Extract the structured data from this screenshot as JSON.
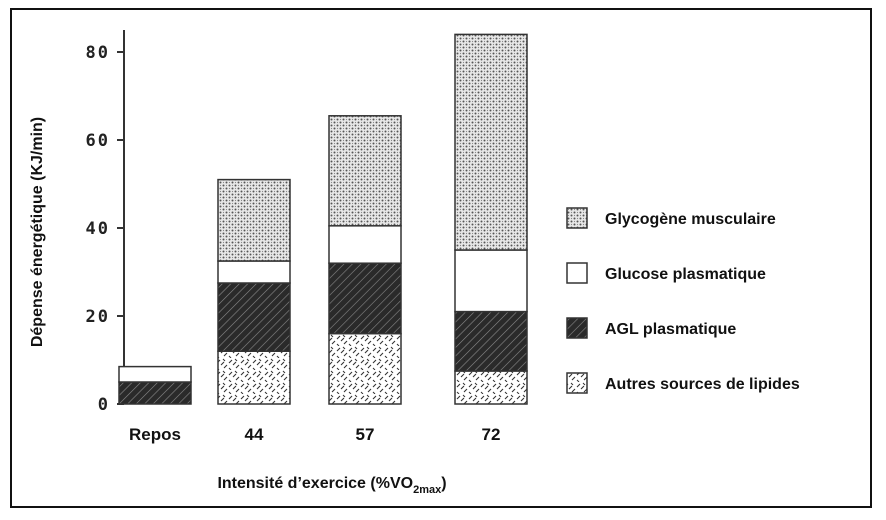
{
  "chart_data": {
    "type": "bar",
    "stacked": true,
    "categories": [
      "Repos",
      "44",
      "57",
      "72"
    ],
    "series": [
      {
        "name": "Autres sources de lipides",
        "pattern": "zigzag",
        "values": [
          0,
          12,
          16,
          7.5
        ]
      },
      {
        "name": "AGL plasmatique",
        "pattern": "hatch",
        "values": [
          5,
          15.5,
          16,
          13.5
        ]
      },
      {
        "name": "Glucose plasmatique",
        "pattern": "white",
        "values": [
          3.5,
          5,
          8.5,
          14
        ]
      },
      {
        "name": "Glycogène musculaire",
        "pattern": "dots",
        "values": [
          0,
          18.5,
          25,
          49
        ]
      }
    ],
    "ylabel": "Dépense énergétique (KJ/min)",
    "xlabel_main": "Intensité d’exercice (%VO",
    "xlabel_sub": "2max",
    "xlabel_end": ")",
    "ylim": [
      0,
      85
    ],
    "yticks": [
      0,
      20,
      40,
      60,
      80
    ],
    "ytick_labels": [
      "0",
      "20",
      "40",
      "60",
      "80"
    ],
    "legend_position": "right",
    "grid": false
  },
  "colors": {
    "axis": "#333333",
    "bar_outline": "#333333",
    "hatch_bg": "#2a2a2a",
    "dots_bg": "#e8e8e8",
    "dots_fg": "#555555"
  }
}
